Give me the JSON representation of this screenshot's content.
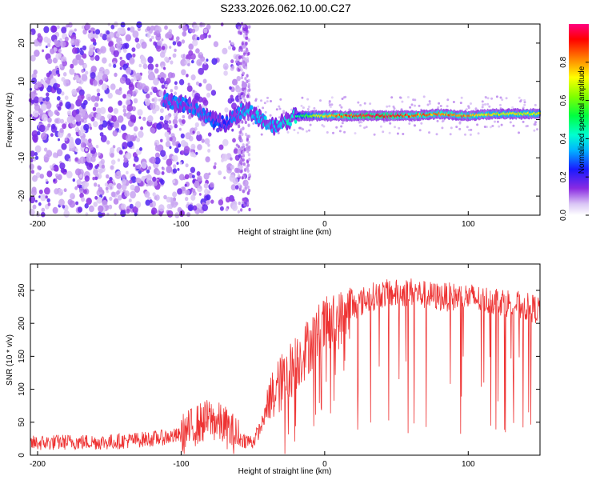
{
  "title": "S233.2026.062.10.00.C27",
  "chart_data": [
    {
      "type": "heatmap",
      "name": "spectrogram",
      "xlabel": "Height of straight line (km)",
      "ylabel": "Frequency (Hz)",
      "xlim": [
        -205,
        150
      ],
      "ylim": [
        -25,
        25
      ],
      "xticks": [
        -200,
        -100,
        0,
        100
      ],
      "yticks": [
        -20,
        -10,
        0,
        10,
        20
      ],
      "xtick_labels": [
        "-200",
        "-100",
        "0",
        "100"
      ],
      "ytick_labels": [
        "-20",
        "-10",
        "0",
        "10",
        "20"
      ],
      "colorbar": {
        "label": "Normalized spectral amplitude",
        "range": [
          0,
          1
        ],
        "ticks": [
          0.0,
          0.2,
          0.4,
          0.6,
          0.8
        ],
        "tick_labels": [
          "0.0",
          "0.2",
          "0.4",
          "0.6",
          "0.8"
        ]
      },
      "ridge": {
        "description_points": [
          {
            "x": -110,
            "y": 5,
            "amp": 0.3
          },
          {
            "x": -100,
            "y": 4,
            "amp": 0.3
          },
          {
            "x": -90,
            "y": 3,
            "amp": 0.3
          },
          {
            "x": -80,
            "y": 0,
            "amp": 0.3
          },
          {
            "x": -70,
            "y": -1,
            "amp": 0.25
          },
          {
            "x": -55,
            "y": 3,
            "amp": 0.35
          },
          {
            "x": -45,
            "y": 0,
            "amp": 0.35
          },
          {
            "x": -35,
            "y": -2,
            "amp": 0.35
          },
          {
            "x": -20,
            "y": 1,
            "amp": 0.45
          },
          {
            "x": 0,
            "y": 1,
            "amp": 0.75
          },
          {
            "x": 20,
            "y": 1,
            "amp": 0.9
          },
          {
            "x": 40,
            "y": 1,
            "amp": 0.95
          },
          {
            "x": 60,
            "y": 1,
            "amp": 0.85
          },
          {
            "x": 80,
            "y": 1.5,
            "amp": 0.8
          },
          {
            "x": 100,
            "y": 1,
            "amp": 0.8
          },
          {
            "x": 120,
            "y": 1.5,
            "amp": 0.7
          },
          {
            "x": 150,
            "y": 1.5,
            "amp": 0.7
          }
        ]
      }
    },
    {
      "type": "line",
      "name": "snr",
      "xlabel": "Height of straight line (km)",
      "ylabel": "SNR (10 * v/v)",
      "xlim": [
        -205,
        150
      ],
      "ylim": [
        0,
        290
      ],
      "xticks": [
        -200,
        -100,
        0,
        100
      ],
      "yticks": [
        0,
        50,
        100,
        150,
        200,
        250
      ],
      "xtick_labels": [
        "-200",
        "-100",
        "0",
        "100"
      ],
      "ytick_labels": [
        "0",
        "50",
        "100",
        "150",
        "200",
        "250"
      ],
      "color": "#ee3333",
      "series": [
        {
          "name": "SNR",
          "x": [
            -205,
            -180,
            -150,
            -120,
            -100,
            -90,
            -80,
            -70,
            -60,
            -50,
            -45,
            -40,
            -35,
            -30,
            -25,
            -20,
            -15,
            -10,
            -5,
            0,
            10,
            20,
            30,
            40,
            50,
            60,
            70,
            80,
            90,
            100,
            110,
            120,
            130,
            140,
            150
          ],
          "values": [
            18,
            20,
            20,
            25,
            30,
            45,
            55,
            45,
            25,
            20,
            40,
            70,
            95,
            110,
            125,
            140,
            155,
            170,
            185,
            195,
            205,
            225,
            238,
            245,
            245,
            248,
            243,
            240,
            240,
            240,
            235,
            235,
            230,
            225,
            220
          ]
        }
      ]
    }
  ]
}
